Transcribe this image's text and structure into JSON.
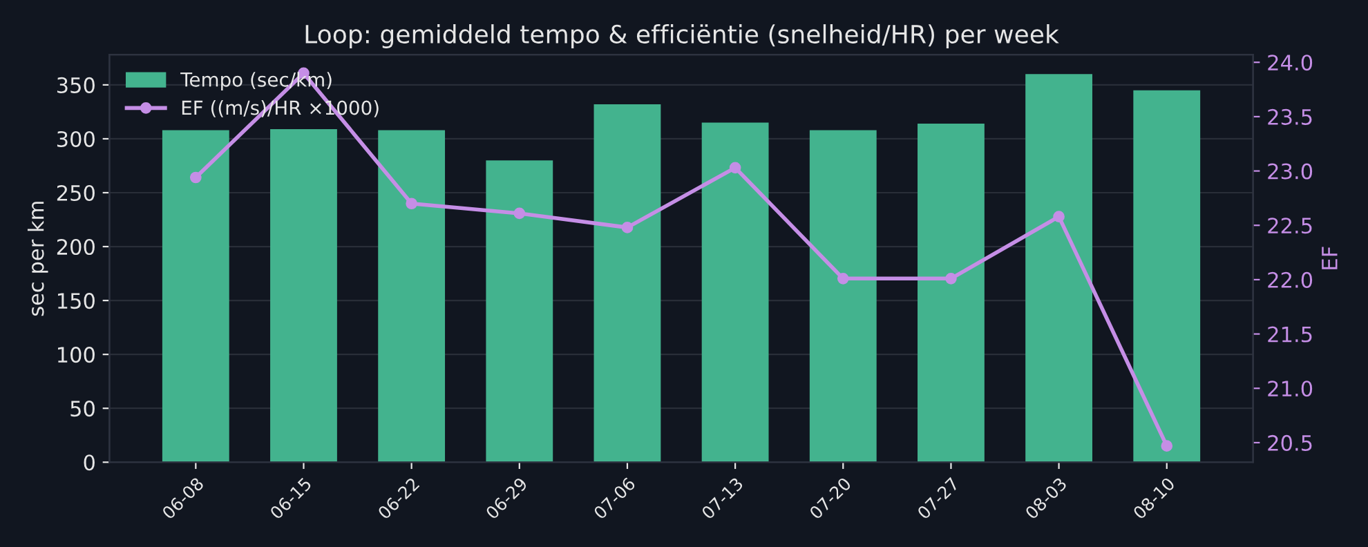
{
  "chart_data": {
    "type": "bar",
    "title": "Loop: gemiddeld tempo & efficiëntie (snelheid/HR) per week",
    "ylabel": "sec per km",
    "y2label": "EF",
    "categories": [
      "06-08",
      "06-15",
      "06-22",
      "06-29",
      "07-06",
      "07-13",
      "07-20",
      "07-27",
      "08-03",
      "08-10"
    ],
    "series": [
      {
        "name": "Tempo (sec/km)",
        "color": "#43b38e",
        "values": [
          308,
          309,
          308,
          280,
          332,
          315,
          308,
          314,
          360,
          345
        ]
      },
      {
        "name": "EF ((m/s)/HR ×1000)",
        "type": "line",
        "axis": "y2",
        "color": "#c58ee6",
        "marker": "circle",
        "values": [
          22.94,
          23.9,
          22.7,
          22.61,
          22.48,
          23.03,
          22.01,
          22.01,
          22.58,
          20.47
        ]
      }
    ],
    "ylim": [
      0,
      378
    ],
    "yticks": [
      0,
      50,
      100,
      150,
      200,
      250,
      300,
      350
    ],
    "y2lim": [
      20.32,
      24.07
    ],
    "y2ticks": [
      {
        "value": 20.5,
        "label": "20.5"
      },
      {
        "value": 21,
        "label": "21.0"
      },
      {
        "value": 21.5,
        "label": "21.5"
      },
      {
        "value": 22,
        "label": "22.0"
      },
      {
        "value": 22.5,
        "label": "22.5"
      },
      {
        "value": 23,
        "label": "23.0"
      },
      {
        "value": 23.5,
        "label": "23.5"
      },
      {
        "value": 24,
        "label": "24.0"
      }
    ],
    "grid": "y",
    "legend": "top left"
  }
}
